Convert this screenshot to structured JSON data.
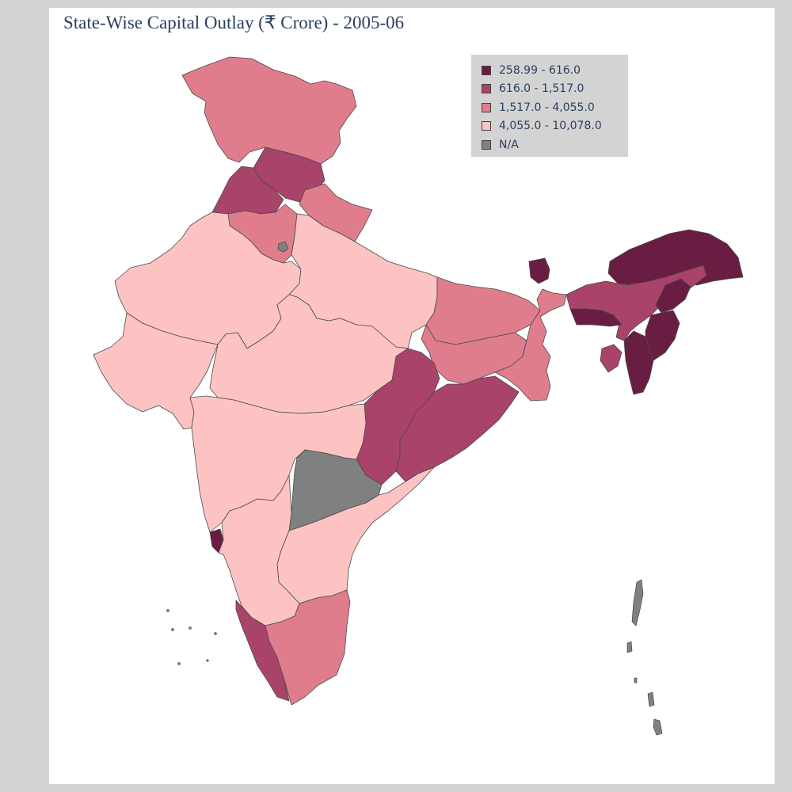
{
  "title": "State-Wise Capital Outlay (₹ Crore) - 2005-06",
  "colors": {
    "background": "#d3d3d3",
    "paper": "#ffffff",
    "text": "#2a3f5f",
    "border": "#4a4a4a"
  },
  "legend": {
    "position": "top-right",
    "items": [
      {
        "label": "258.99 - 616.0",
        "color": "#6a1d42"
      },
      {
        "label": "616.0 - 1,517.0",
        "color": "#a9436a"
      },
      {
        "label": "1,517.0 - 4,055.0",
        "color": "#e07d8c"
      },
      {
        "label": "4,055.0 - 10,078.0",
        "color": "#fdc3c3"
      },
      {
        "label": "N/A",
        "color": "#808080"
      }
    ]
  }
}
